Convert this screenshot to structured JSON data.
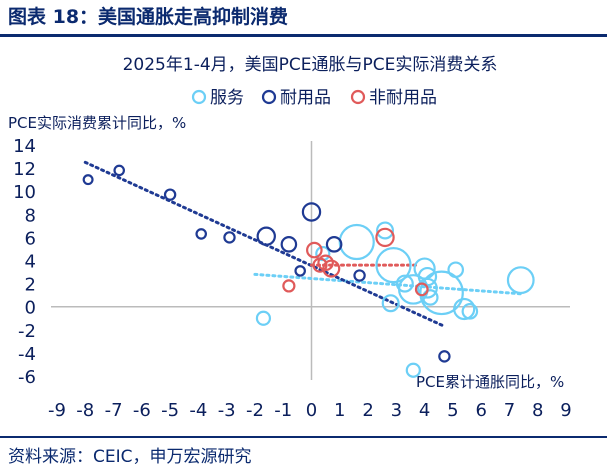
{
  "figure": {
    "title": "图表 18：美国通胀走高抑制消费",
    "source": "资料来源：CEIC，申万宏源研究"
  },
  "colors": {
    "services": "#6ccff6",
    "durable": "#1f3a93",
    "nondurable": "#e05a5a",
    "axis": "#bbbbbb",
    "text": "#0b1f5c"
  },
  "chart_data": {
    "type": "scatter",
    "title": "2025年1-4月，美国PCE通胀与PCE实际消费关系",
    "xlabel": "PCE累计通胀同比，%",
    "ylabel": "PCE实际消费累计同比，%",
    "xlim": [
      -9,
      9
    ],
    "ylim": [
      -6,
      14
    ],
    "x_ticks": [
      "-9",
      "-8",
      "-7",
      "-6",
      "-5",
      "-4",
      "-3",
      "-2",
      "-1",
      "0",
      "1",
      "2",
      "3",
      "4",
      "5",
      "6",
      "7",
      "8",
      "9"
    ],
    "y_ticks": [
      "14",
      "12",
      "10",
      "8",
      "6",
      "4",
      "2",
      "0",
      "-2",
      "-4",
      "-6"
    ],
    "grid": false,
    "legend": "top",
    "series": [
      {
        "name": "服务",
        "marker": "open-circle",
        "points": [
          {
            "x": 1.6,
            "y": 5.6,
            "r": 1.0
          },
          {
            "x": 2.6,
            "y": 6.6,
            "r": 0.35
          },
          {
            "x": 2.9,
            "y": 3.6,
            "r": 1.0
          },
          {
            "x": 3.6,
            "y": 1.5,
            "r": 0.8
          },
          {
            "x": 4.0,
            "y": 3.3,
            "r": 0.5
          },
          {
            "x": 4.1,
            "y": 2.6,
            "r": 0.4
          },
          {
            "x": 4.1,
            "y": 1.6,
            "r": 0.45
          },
          {
            "x": 4.6,
            "y": 1.2,
            "r": 1.3
          },
          {
            "x": 5.1,
            "y": 3.2,
            "r": 0.3
          },
          {
            "x": 5.4,
            "y": -0.2,
            "r": 0.5
          },
          {
            "x": 5.6,
            "y": -0.4,
            "r": 0.3
          },
          {
            "x": 7.4,
            "y": 2.3,
            "r": 0.7
          },
          {
            "x": 2.8,
            "y": 0.3,
            "r": 0.35
          },
          {
            "x": 3.3,
            "y": 2.0,
            "r": 0.35
          },
          {
            "x": 4.2,
            "y": 0.8,
            "r": 0.3
          },
          {
            "x": 3.6,
            "y": -5.5,
            "r": 0.25
          },
          {
            "x": -1.7,
            "y": -1.0,
            "r": 0.25
          },
          {
            "x": 0.4,
            "y": 4.6,
            "r": 0.25
          }
        ]
      },
      {
        "name": "耐用品",
        "marker": "open-circle",
        "points": [
          {
            "x": -7.9,
            "y": 11.0,
            "r": 0.1
          },
          {
            "x": -6.8,
            "y": 11.8,
            "r": 0.12
          },
          {
            "x": -5.0,
            "y": 9.7,
            "r": 0.15
          },
          {
            "x": -3.9,
            "y": 6.3,
            "r": 0.12
          },
          {
            "x": -2.9,
            "y": 6.0,
            "r": 0.15
          },
          {
            "x": -1.6,
            "y": 6.1,
            "r": 0.4
          },
          {
            "x": -0.8,
            "y": 5.4,
            "r": 0.3
          },
          {
            "x": 0.0,
            "y": 8.2,
            "r": 0.4
          },
          {
            "x": 0.8,
            "y": 5.4,
            "r": 0.3
          },
          {
            "x": 1.7,
            "y": 2.7,
            "r": 0.15
          },
          {
            "x": -0.4,
            "y": 3.1,
            "r": 0.12
          },
          {
            "x": 4.7,
            "y": -4.3,
            "r": 0.15
          }
        ]
      },
      {
        "name": "非耐用品",
        "marker": "open-circle",
        "points": [
          {
            "x": 2.6,
            "y": 6.0,
            "r": 0.4
          },
          {
            "x": 0.1,
            "y": 4.9,
            "r": 0.3
          },
          {
            "x": 0.5,
            "y": 3.8,
            "r": 0.3
          },
          {
            "x": 0.7,
            "y": 3.3,
            "r": 0.35
          },
          {
            "x": 0.3,
            "y": 3.6,
            "r": 0.25
          },
          {
            "x": -0.8,
            "y": 1.8,
            "r": 0.18
          },
          {
            "x": 3.9,
            "y": 1.5,
            "r": 0.2
          }
        ]
      }
    ],
    "trendlines": [
      {
        "series": "服务",
        "from": [
          -2,
          2.8
        ],
        "to": [
          7.5,
          1.1
        ]
      },
      {
        "series": "耐用品",
        "from": [
          -8,
          12.5
        ],
        "to": [
          4.7,
          -1.7
        ]
      },
      {
        "series": "非耐用品",
        "from": [
          0,
          3.6
        ],
        "to": [
          3.8,
          3.6
        ]
      }
    ]
  }
}
